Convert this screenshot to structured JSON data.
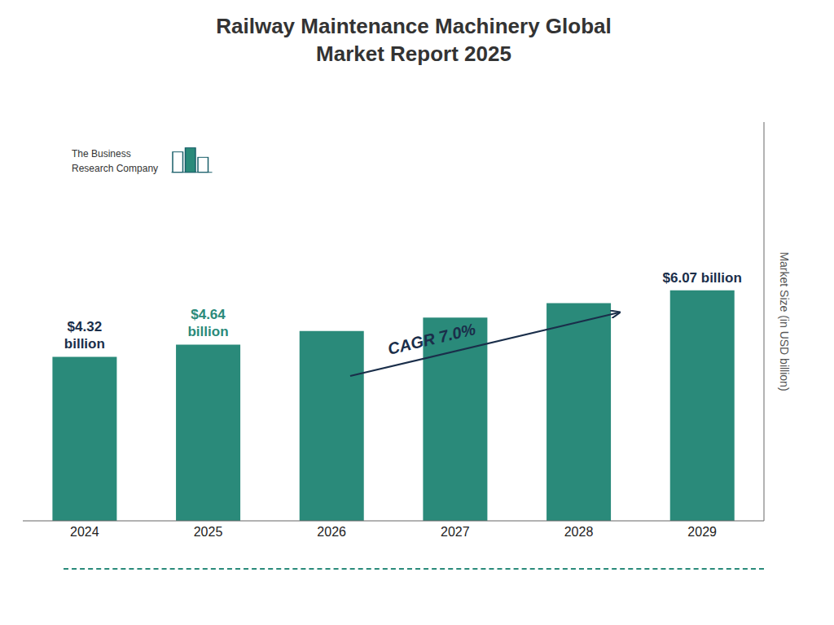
{
  "chart_data": {
    "type": "bar",
    "title": "Railway Maintenance Machinery Global\nMarket Report 2025",
    "categories": [
      "2024",
      "2025",
      "2026",
      "2027",
      "2028",
      "2029"
    ],
    "values": [
      4.32,
      4.64,
      5.0,
      5.35,
      5.73,
      6.07
    ],
    "color": "#2a8a7a",
    "ylabel": "Market Size (in USD billion)",
    "ylim": [
      0,
      10.5
    ],
    "tick_labels": "x",
    "grid": false,
    "annotations": [
      {
        "text": "$4.32\nbillion",
        "x": "2024",
        "y": 4.32,
        "color": "#1a2e4a"
      },
      {
        "text": "$4.64\nbillion",
        "x": "2025",
        "y": 4.64,
        "color": "#2a8a7a"
      },
      {
        "text": "$6.07 billion",
        "x": "2029",
        "y": 6.07,
        "color": "#1a2e4a"
      },
      {
        "text": "CAGR 7.0%",
        "color": "#1a2e4a"
      },
      {
        "text": "The Business\nResearch Company"
      }
    ]
  }
}
